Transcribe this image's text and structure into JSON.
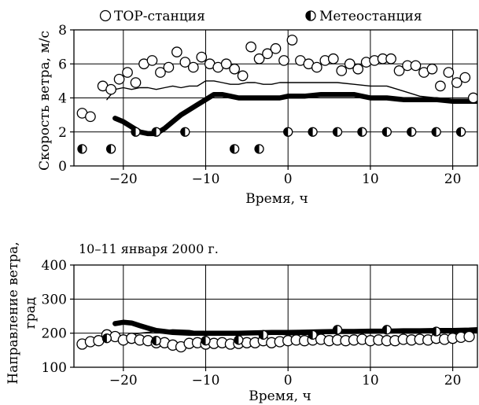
{
  "chart_data": [
    {
      "type": "scatter",
      "panel": "wind-speed",
      "title": "",
      "xlabel": "Время, ч",
      "ylabel": "Скорость ветра, м/с",
      "xlim": [
        -26,
        23
      ],
      "ylim": [
        0,
        8
      ],
      "xticks": [
        -20,
        -10,
        0,
        10,
        20
      ],
      "xtick_labels": [
        "−20",
        "−10",
        "0",
        "10",
        "20"
      ],
      "yticks": [
        0,
        2,
        4,
        6,
        8
      ],
      "ytick_labels": [
        "0",
        "2",
        "4",
        "6",
        "8"
      ],
      "grid": true,
      "legend_position": "top",
      "series": [
        {
          "name": "ТОР-станция",
          "marker": "open-circle",
          "x": [
            -25,
            -24,
            -22.5,
            -21.5,
            -20.5,
            -19.5,
            -18.5,
            -17.5,
            -16.5,
            -15.5,
            -14.5,
            -13.5,
            -12.5,
            -11.5,
            -10.5,
            -9.5,
            -8.5,
            -7.5,
            -6.5,
            -5.5,
            -4.5,
            -3.5,
            -2.5,
            -1.5,
            -0.5,
            0.5,
            1.5,
            2.5,
            3.5,
            4.5,
            5.5,
            6.5,
            7.5,
            8.5,
            9.5,
            10.5,
            11.5,
            12.5,
            13.5,
            14.5,
            15.5,
            16.5,
            17.5,
            18.5,
            19.5,
            20.5,
            21.5,
            22.5
          ],
          "y": [
            3.1,
            2.9,
            4.7,
            4.5,
            5.1,
            5.5,
            4.9,
            6.0,
            6.2,
            5.5,
            5.8,
            6.7,
            6.1,
            5.8,
            6.4,
            6.0,
            5.8,
            6.0,
            5.7,
            5.3,
            7.0,
            6.3,
            6.6,
            6.9,
            6.2,
            7.4,
            6.2,
            6.0,
            5.8,
            6.2,
            6.3,
            5.6,
            6.0,
            5.7,
            6.1,
            6.2,
            6.3,
            6.3,
            5.6,
            5.9,
            5.9,
            5.5,
            5.7,
            4.7,
            5.5,
            4.9,
            5.2,
            4.0
          ]
        },
        {
          "name": "Метеостанция",
          "marker": "half-filled-circle",
          "x": [
            -25,
            -21.5,
            -18.5,
            -16,
            -12.5,
            -6.5,
            -3.5,
            0,
            3,
            6,
            9,
            12,
            15,
            18,
            21
          ],
          "y": [
            1,
            1,
            2,
            2,
            2,
            1,
            1,
            2,
            2,
            2,
            2,
            2,
            2,
            2,
            2
          ]
        },
        {
          "name": "",
          "style": "thick-line",
          "x": [
            -21,
            -20,
            -19,
            -18,
            -17,
            -16,
            -15,
            -14,
            -13,
            -12,
            -11,
            -10,
            -9,
            -8,
            -7,
            -6,
            -5,
            -4,
            -3,
            -2,
            -1,
            0,
            2,
            4,
            6,
            8,
            10,
            12,
            14,
            16,
            18,
            20,
            22,
            23
          ],
          "y": [
            2.8,
            2.6,
            2.3,
            2.0,
            1.9,
            1.9,
            2.2,
            2.6,
            3.0,
            3.3,
            3.6,
            3.9,
            4.2,
            4.2,
            4.1,
            4.0,
            4.0,
            4.0,
            4.0,
            4.0,
            4.0,
            4.1,
            4.1,
            4.2,
            4.2,
            4.2,
            4.0,
            4.0,
            3.9,
            3.9,
            3.9,
            3.8,
            3.8,
            3.8
          ]
        },
        {
          "name": "",
          "style": "thin-line",
          "x": [
            -22,
            -21,
            -20,
            -19,
            -18,
            -17,
            -16,
            -15,
            -14,
            -13,
            -12,
            -11,
            -10,
            -9,
            -8,
            -7,
            -6,
            -5,
            -4,
            -3,
            -2,
            -1,
            0,
            2,
            4,
            6,
            8,
            10,
            11,
            12,
            14,
            16,
            18,
            20,
            22,
            23
          ],
          "y": [
            3.9,
            4.5,
            4.6,
            4.5,
            4.6,
            4.6,
            4.5,
            4.6,
            4.7,
            4.6,
            4.7,
            4.7,
            5.0,
            5.0,
            4.9,
            4.8,
            4.8,
            4.9,
            4.9,
            4.8,
            4.8,
            4.9,
            4.9,
            4.9,
            4.9,
            4.9,
            4.8,
            4.7,
            4.7,
            4.7,
            4.4,
            4.1,
            4.0,
            3.9,
            3.9,
            3.9
          ]
        }
      ]
    },
    {
      "type": "scatter",
      "panel": "wind-direction",
      "title": "",
      "annotation": "10–11 января 2000 г.",
      "xlabel": "Время, ч",
      "ylabel": "Направление ветра, град",
      "ylabel_lines": [
        "Направление ветра,",
        "град"
      ],
      "xlim": [
        -26,
        23
      ],
      "ylim": [
        100,
        400
      ],
      "xticks": [
        -20,
        -10,
        0,
        10,
        20
      ],
      "xtick_labels": [
        "−20",
        "−10",
        "0",
        "10",
        "20"
      ],
      "yticks": [
        100,
        200,
        300,
        400
      ],
      "ytick_labels": [
        "100",
        "200",
        "300",
        "400"
      ],
      "grid": true,
      "series": [
        {
          "name": "ТОР-станция",
          "marker": "open-circle",
          "x": [
            -25,
            -24,
            -23,
            -22,
            -21,
            -20,
            -19,
            -18,
            -17,
            -16,
            -15,
            -14,
            -13,
            -12,
            -11,
            -10,
            -9,
            -8,
            -7,
            -6,
            -5,
            -4,
            -3,
            -2,
            -1,
            0,
            1,
            2,
            3,
            4,
            5,
            6,
            7,
            8,
            9,
            10,
            11,
            12,
            13,
            14,
            15,
            16,
            17,
            18,
            19,
            20,
            21,
            22
          ],
          "y": [
            168,
            175,
            178,
            195,
            190,
            180,
            185,
            180,
            178,
            172,
            172,
            165,
            160,
            170,
            172,
            168,
            170,
            172,
            168,
            170,
            172,
            172,
            178,
            172,
            175,
            178,
            180,
            178,
            180,
            182,
            178,
            180,
            178,
            180,
            182,
            178,
            180,
            178,
            178,
            182,
            180,
            182,
            180,
            185,
            182,
            185,
            188,
            190
          ]
        },
        {
          "name": "Метеостанция",
          "marker": "half-filled-circle",
          "x": [
            -22,
            -16,
            -10,
            -6,
            -3,
            3,
            6,
            12,
            18
          ],
          "y": [
            185,
            178,
            178,
            180,
            195,
            195,
            210,
            210,
            205
          ]
        },
        {
          "name": "",
          "style": "thick-line",
          "x": [
            -21,
            -20,
            -19,
            -18,
            -17,
            -16,
            -15,
            -14,
            -12,
            -10,
            -8,
            -6,
            -4,
            -2,
            0,
            2,
            4,
            6,
            8,
            10,
            12,
            14,
            16,
            18,
            20,
            22,
            23
          ],
          "y": [
            228,
            232,
            230,
            222,
            215,
            208,
            205,
            202,
            200,
            200,
            200,
            200,
            201,
            202,
            202,
            203,
            204,
            205,
            205,
            206,
            206,
            207,
            207,
            208,
            208,
            209,
            210
          ]
        },
        {
          "name": "",
          "style": "thin-line",
          "x": [
            -22,
            -20,
            -18,
            -16,
            -14,
            -12,
            -10,
            -8,
            -6,
            -4,
            -2,
            0,
            2,
            4,
            6,
            8,
            10,
            12,
            14,
            16,
            18,
            20,
            22,
            23
          ],
          "y": [
            195,
            190,
            200,
            205,
            210,
            208,
            200,
            198,
            196,
            200,
            198,
            195,
            196,
            198,
            205,
            200,
            200,
            202,
            200,
            200,
            205,
            200,
            200,
            202
          ]
        }
      ]
    }
  ]
}
